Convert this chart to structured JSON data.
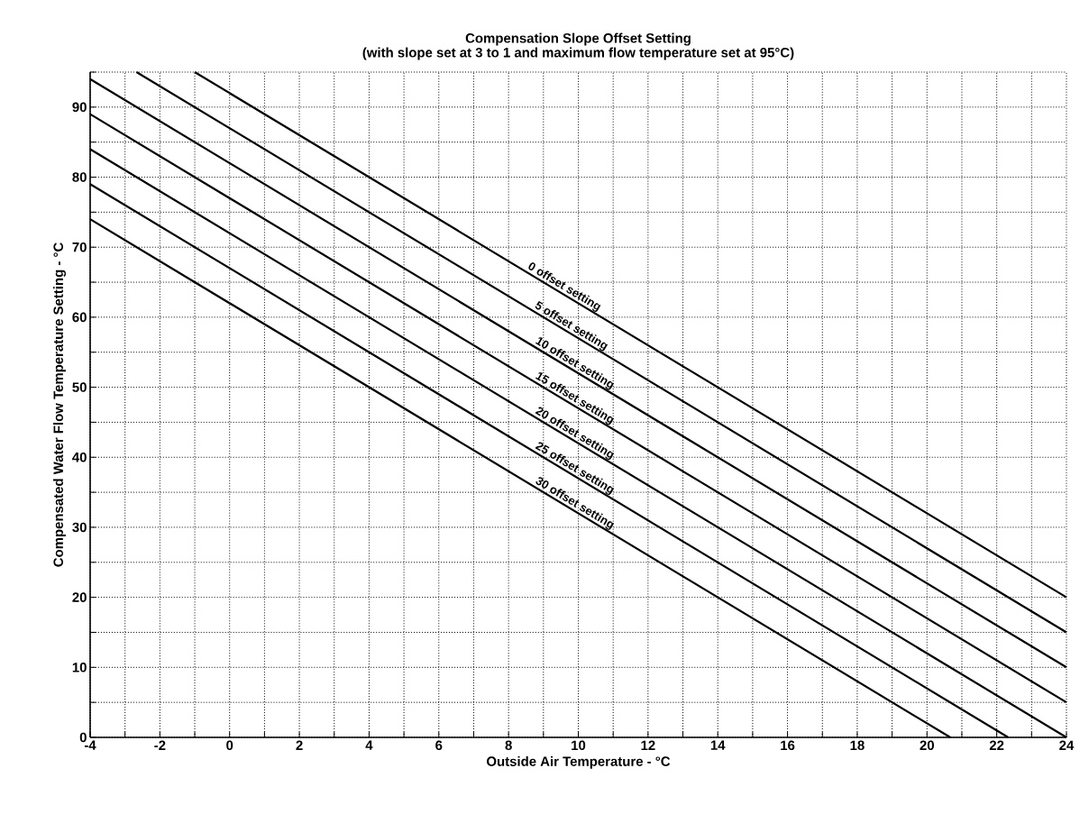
{
  "chart_data": {
    "type": "line",
    "title": "Compensation Slope Offset Setting",
    "subtitle": "(with slope set at 3 to 1 and maximum flow temperature set at 95°C)",
    "xlabel": "Outside Air Temperature - °C",
    "ylabel": "Compensated Water Flow Temperature Setting - °C",
    "xlim": [
      -4,
      24
    ],
    "ylim": [
      0,
      95
    ],
    "xticks": [
      -4,
      {
        "value": -3,
        "label": null
      },
      -2,
      {
        "value": -1,
        "label": null
      },
      0,
      {
        "value": 1,
        "label": null
      },
      2,
      {
        "value": 3,
        "label": null
      },
      4,
      {
        "value": 5,
        "label": null
      },
      6,
      {
        "value": 7,
        "label": null
      },
      8,
      {
        "value": 9,
        "label": null
      },
      10,
      {
        "value": 11,
        "label": null
      },
      12,
      {
        "value": 13,
        "label": null
      },
      14,
      {
        "value": 15,
        "label": null
      },
      16,
      {
        "value": 17,
        "label": null
      },
      18,
      {
        "value": 19,
        "label": null
      },
      20,
      {
        "value": 21,
        "label": null
      },
      22,
      {
        "value": 23,
        "label": null
      },
      24
    ],
    "yticks": [
      0,
      {
        "value": 5,
        "label": null
      },
      10,
      {
        "value": 15,
        "label": null
      },
      20,
      {
        "value": 25,
        "label": null
      },
      30,
      {
        "value": 35,
        "label": null
      },
      40,
      {
        "value": 45,
        "label": null
      },
      50,
      {
        "value": 55,
        "label": null
      },
      60,
      {
        "value": 65,
        "label": null
      },
      70,
      {
        "value": 75,
        "label": null
      },
      80,
      {
        "value": 85,
        "label": null
      },
      90,
      {
        "value": 95,
        "label": null
      }
    ],
    "grid": true,
    "marker": "none",
    "line_style": "solid",
    "series": [
      {
        "color": "#000000",
        "x": [
          -1,
          24
        ],
        "values": [
          95,
          20
        ]
      },
      {
        "color": "#000000",
        "x": [
          -2.67,
          24
        ],
        "values": [
          95,
          15
        ]
      },
      {
        "color": "#000000",
        "x": [
          -4,
          24
        ],
        "values": [
          94,
          10
        ]
      },
      {
        "color": "#000000",
        "x": [
          -4,
          24
        ],
        "values": [
          89,
          5
        ]
      },
      {
        "color": "#000000",
        "x": [
          -4,
          24
        ],
        "values": [
          84,
          0
        ]
      },
      {
        "color": "#000000",
        "x": [
          -4,
          22.33
        ],
        "values": [
          79,
          0
        ]
      },
      {
        "color": "#000000",
        "x": [
          -4,
          20.67
        ],
        "values": [
          74,
          0
        ]
      }
    ],
    "annotations": [
      {
        "text": "0 offset setting",
        "x": 9.5,
        "y": 63.5
      },
      {
        "text": "5 offset setting",
        "x": 9.7,
        "y": 57.9
      },
      {
        "text": "10 offset setting",
        "x": 9.8,
        "y": 52.6
      },
      {
        "text": "15 offset setting",
        "x": 9.8,
        "y": 47.6
      },
      {
        "text": "20 offset setting",
        "x": 9.8,
        "y": 42.6
      },
      {
        "text": "25 offset setting",
        "x": 9.8,
        "y": 37.6
      },
      {
        "text": "30 offset setting",
        "x": 9.8,
        "y": 32.6
      }
    ]
  }
}
